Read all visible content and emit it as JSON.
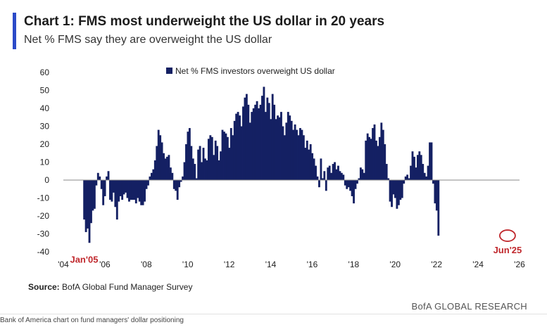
{
  "header": {
    "title": "Chart 1: FMS most underweight the US dollar in 20 years",
    "subtitle": "Net % FMS say they are overweight the US dollar"
  },
  "footer": {
    "source_label": "Source:",
    "source_text": "BofA Global Fund Manager Survey",
    "brand": "BofA GLOBAL RESEARCH",
    "caption": "Bank of America chart on fund managers' dollar positioning"
  },
  "colors": {
    "accent": "#2b4ac8",
    "bars": "#142063",
    "annotation": "#c0282d",
    "zero_line": "#888888"
  },
  "chart_data": {
    "type": "bar",
    "series": [
      {
        "name": "Net % FMS investors overweight US dollar",
        "x_start": 2005.0,
        "x_step": 0.08333,
        "values": [
          -22,
          -29,
          -27,
          -35,
          -24,
          -17,
          -16,
          -3,
          4,
          2,
          -5,
          -14,
          -9,
          2,
          5,
          -11,
          -12,
          -7,
          -15,
          -22,
          -12,
          -9,
          -11,
          -8,
          -7,
          -10,
          -12,
          -11,
          -11,
          -11,
          -13,
          -10,
          -12,
          -14,
          -14,
          -12,
          -5,
          -3,
          2,
          4,
          6,
          11,
          19,
          28,
          25,
          21,
          15,
          12,
          13,
          14,
          7,
          4,
          -5,
          -6,
          -11,
          -4,
          -1,
          2,
          10,
          20,
          27,
          29,
          19,
          12,
          9,
          1,
          17,
          19,
          10,
          18,
          12,
          11,
          23,
          25,
          24,
          14,
          22,
          19,
          11,
          16,
          28,
          27,
          26,
          24,
          18,
          29,
          25,
          33,
          37,
          38,
          36,
          30,
          41,
          46,
          48,
          42,
          32,
          38,
          40,
          42,
          44,
          40,
          42,
          47,
          52,
          38,
          46,
          43,
          34,
          48,
          42,
          34,
          36,
          35,
          38,
          30,
          25,
          32,
          38,
          36,
          33,
          28,
          31,
          28,
          25,
          29,
          28,
          25,
          18,
          22,
          17,
          20,
          15,
          12,
          8,
          2,
          -4,
          12,
          1,
          5,
          -6,
          7,
          8,
          4,
          9,
          10,
          6,
          8,
          5,
          4,
          3,
          -3,
          -5,
          -4,
          -6,
          -9,
          -13,
          -5,
          -2,
          1,
          7,
          6,
          4,
          22,
          26,
          24,
          23,
          29,
          31,
          22,
          19,
          24,
          32,
          28,
          20,
          9,
          1,
          -12,
          -15,
          -8,
          -10,
          -16,
          -14,
          -11,
          -10,
          -2,
          2,
          3,
          1,
          8,
          16,
          13,
          7,
          14,
          16,
          14,
          9,
          4,
          2,
          8,
          21,
          21,
          -2,
          -13,
          -17,
          -31
        ]
      }
    ],
    "ylim": [
      -40,
      60
    ],
    "yticks": [
      60,
      50,
      40,
      30,
      20,
      10,
      0,
      -10,
      -20,
      -30,
      -40
    ],
    "xlim": [
      2004,
      2026
    ],
    "xticks": [
      {
        "value": 2004,
        "label": "'04"
      },
      {
        "value": 2006,
        "label": "'06"
      },
      {
        "value": 2008,
        "label": "'08"
      },
      {
        "value": 2010,
        "label": "'10"
      },
      {
        "value": 2012,
        "label": "'12"
      },
      {
        "value": 2014,
        "label": "'14"
      },
      {
        "value": 2016,
        "label": "'16"
      },
      {
        "value": 2018,
        "label": "'18"
      },
      {
        "value": 2020,
        "label": "'20"
      },
      {
        "value": 2022,
        "label": "'22"
      },
      {
        "value": 2024,
        "label": "'24"
      },
      {
        "value": 2026,
        "label": "'26"
      }
    ],
    "legend_position": "top-center",
    "grid": false,
    "annotations": [
      {
        "label": "Jan'05",
        "x": 2005.0,
        "y": -35
      },
      {
        "label": "Jun'25",
        "x": 2025.42,
        "y": -31,
        "circled": true
      }
    ]
  }
}
